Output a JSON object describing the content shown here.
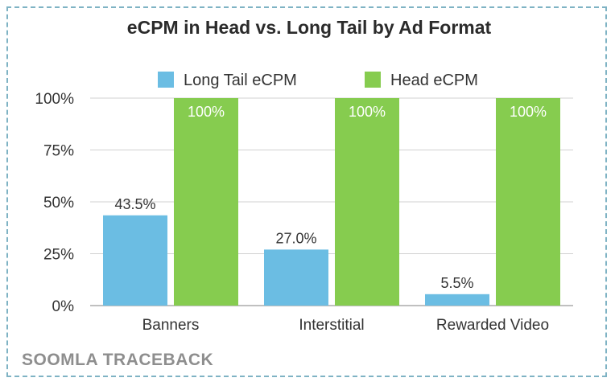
{
  "chart_data": {
    "type": "bar",
    "title": "eCPM in Head vs. Long Tail by Ad Format",
    "categories": [
      "Banners",
      "Interstitial",
      "Rewarded Video"
    ],
    "series": [
      {
        "name": "Long Tail eCPM",
        "values": [
          43.5,
          27.0,
          5.5
        ],
        "labels": [
          "43.5%",
          "27.0%",
          "5.5%"
        ],
        "color": "#6bbde3"
      },
      {
        "name": "Head eCPM",
        "values": [
          100,
          100,
          100
        ],
        "labels": [
          "100%",
          "100%",
          "100%"
        ],
        "color": "#86cc4f"
      }
    ],
    "ylim": [
      0,
      100
    ],
    "yticks": [
      0,
      25,
      50,
      75,
      100
    ],
    "ytick_labels": [
      "0%",
      "25%",
      "50%",
      "75%",
      "100%"
    ],
    "grid": true,
    "legend": "top"
  },
  "branding": {
    "watermark": "SOOMLA TRACEBACK"
  }
}
